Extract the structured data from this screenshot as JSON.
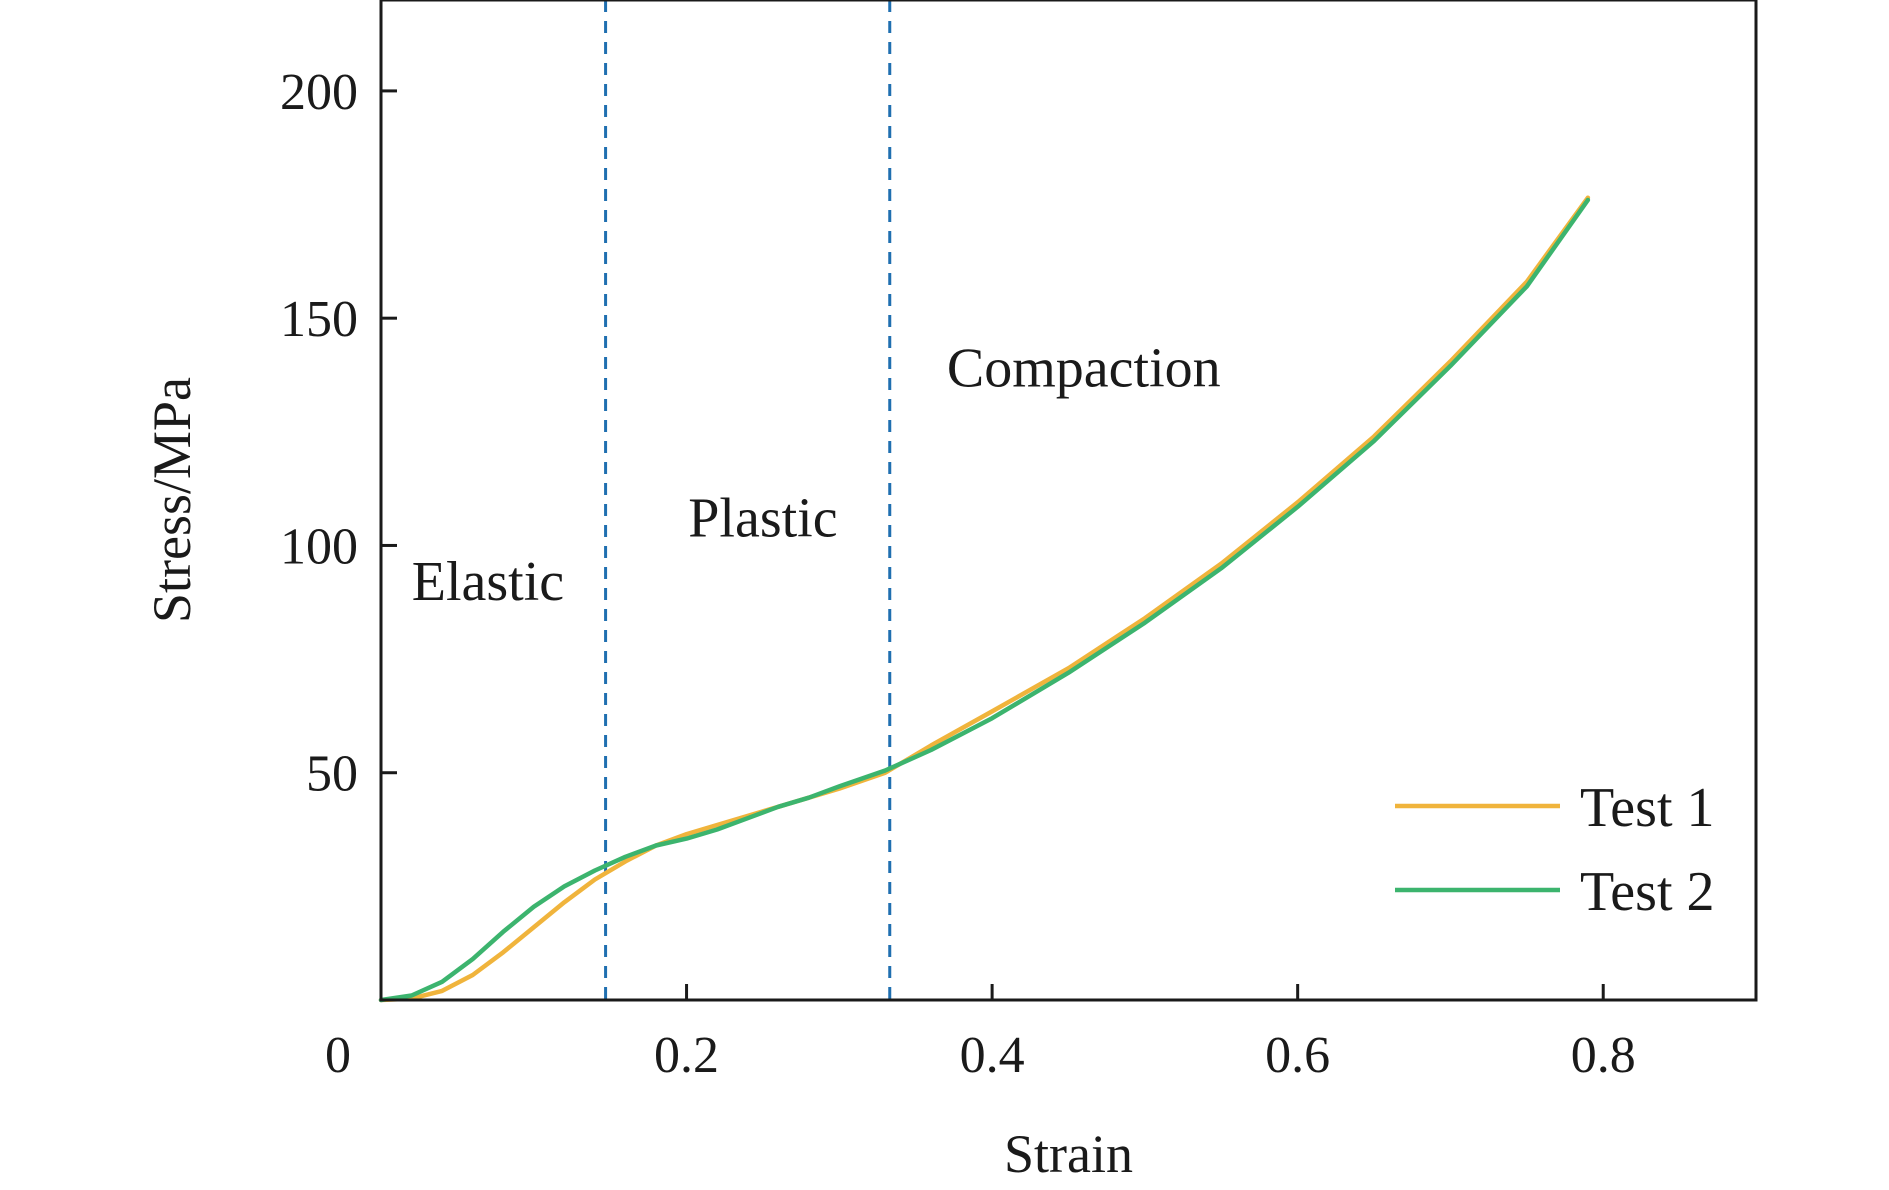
{
  "chart_data": {
    "type": "line",
    "title": "",
    "xlabel": "Strain",
    "ylabel": "Stress/MPa",
    "xlim": [
      0,
      0.9
    ],
    "ylim": [
      0,
      220
    ],
    "x_ticks": [
      0.2,
      0.4,
      0.6,
      0.8
    ],
    "x_tick_labels": [
      "0.2",
      "0.4",
      "0.6",
      "0.8"
    ],
    "y_ticks": [
      0,
      50,
      100,
      150,
      200
    ],
    "y_tick_labels": [
      "0",
      "50",
      "100",
      "150",
      "200"
    ],
    "grid": false,
    "legend_position": "bottom-right",
    "colors": {
      "test1": "#f0b43c",
      "test2": "#3cb46e",
      "divider": "#1f6fb0"
    },
    "dividers": [
      0.147,
      0.333
    ],
    "regions": [
      {
        "label": "Elastic",
        "x": 0.07,
        "y": 88
      },
      {
        "label": "Plastic",
        "x": 0.25,
        "y": 102
      },
      {
        "label": "Compaction",
        "x": 0.46,
        "y": 135
      }
    ],
    "series": [
      {
        "name": "Test 1",
        "color": "#f0b43c",
        "points": [
          [
            0.0,
            0.0
          ],
          [
            0.02,
            0.3
          ],
          [
            0.04,
            2.0
          ],
          [
            0.06,
            5.5
          ],
          [
            0.08,
            10.5
          ],
          [
            0.1,
            16.0
          ],
          [
            0.12,
            21.5
          ],
          [
            0.14,
            26.5
          ],
          [
            0.16,
            30.5
          ],
          [
            0.18,
            34.0
          ],
          [
            0.2,
            36.5
          ],
          [
            0.22,
            38.5
          ],
          [
            0.24,
            40.5
          ],
          [
            0.26,
            42.5
          ],
          [
            0.28,
            44.5
          ],
          [
            0.3,
            46.5
          ],
          [
            0.33,
            50.0
          ],
          [
            0.36,
            56.0
          ],
          [
            0.4,
            63.5
          ],
          [
            0.45,
            73.0
          ],
          [
            0.5,
            84.0
          ],
          [
            0.55,
            96.0
          ],
          [
            0.6,
            109.5
          ],
          [
            0.65,
            124.0
          ],
          [
            0.7,
            140.5
          ],
          [
            0.75,
            158.0
          ],
          [
            0.79,
            176.5
          ]
        ]
      },
      {
        "name": "Test 2",
        "color": "#3cb46e",
        "points": [
          [
            0.0,
            0.0
          ],
          [
            0.02,
            1.0
          ],
          [
            0.04,
            4.0
          ],
          [
            0.06,
            9.0
          ],
          [
            0.08,
            15.0
          ],
          [
            0.1,
            20.5
          ],
          [
            0.12,
            25.0
          ],
          [
            0.14,
            28.5
          ],
          [
            0.16,
            31.5
          ],
          [
            0.18,
            34.0
          ],
          [
            0.2,
            35.5
          ],
          [
            0.22,
            37.5
          ],
          [
            0.24,
            40.0
          ],
          [
            0.26,
            42.5
          ],
          [
            0.28,
            44.5
          ],
          [
            0.3,
            47.0
          ],
          [
            0.33,
            50.5
          ],
          [
            0.36,
            55.0
          ],
          [
            0.4,
            62.0
          ],
          [
            0.45,
            72.0
          ],
          [
            0.5,
            83.0
          ],
          [
            0.55,
            95.0
          ],
          [
            0.6,
            108.5
          ],
          [
            0.65,
            123.0
          ],
          [
            0.7,
            139.5
          ],
          [
            0.75,
            157.0
          ],
          [
            0.79,
            176.0
          ]
        ]
      }
    ]
  }
}
